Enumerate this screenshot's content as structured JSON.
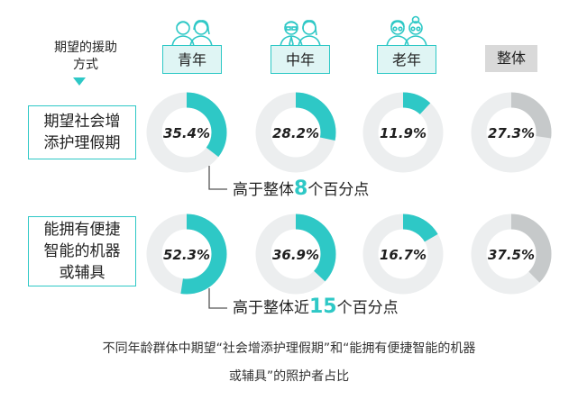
{
  "header_label": [
    "期望的援助",
    "方式"
  ],
  "annotations": {
    "row1": {
      "prefix": "高于整体",
      "number": "8",
      "suffix": "个百分点"
    },
    "row2": {
      "prefix": "高于整体近",
      "number": "15",
      "suffix": "个百分点"
    }
  },
  "caption": [
    "不同年龄群体中期望“社会增添护理假期”和“能拥有便捷智能的机器",
    "或辅具”的照护者占比"
  ],
  "colors": {
    "accent": "#2ec8c6",
    "track": "#eceeef",
    "overall": "#c6c9ca",
    "badge_bg": "#dff5f4",
    "overall_badge_bg": "#d9d9d9"
  },
  "icons": [
    "young-couple-icon",
    "middle-aged-couple-icon",
    "elderly-couple-icon"
  ],
  "chart_data": {
    "type": "pie",
    "subtype": "donut-grid",
    "categories": [
      "青年",
      "中年",
      "老年",
      "整体"
    ],
    "series": [
      {
        "name": "期望社会增添护理假期",
        "label_lines": [
          "期望社会增",
          "添护理假期"
        ],
        "values": [
          35.4,
          28.2,
          11.9,
          27.3
        ],
        "labels": [
          "35.4%",
          "28.2%",
          "11.9%",
          "27.3%"
        ]
      },
      {
        "name": "能拥有便捷智能的机器或辅具",
        "label_lines": [
          "能拥有便捷",
          "智能的机器",
          "或辅具"
        ],
        "values": [
          52.3,
          36.9,
          16.7,
          37.5
        ],
        "labels": [
          "52.3%",
          "36.9%",
          "16.7%",
          "37.5%"
        ]
      }
    ],
    "unit": "%"
  }
}
